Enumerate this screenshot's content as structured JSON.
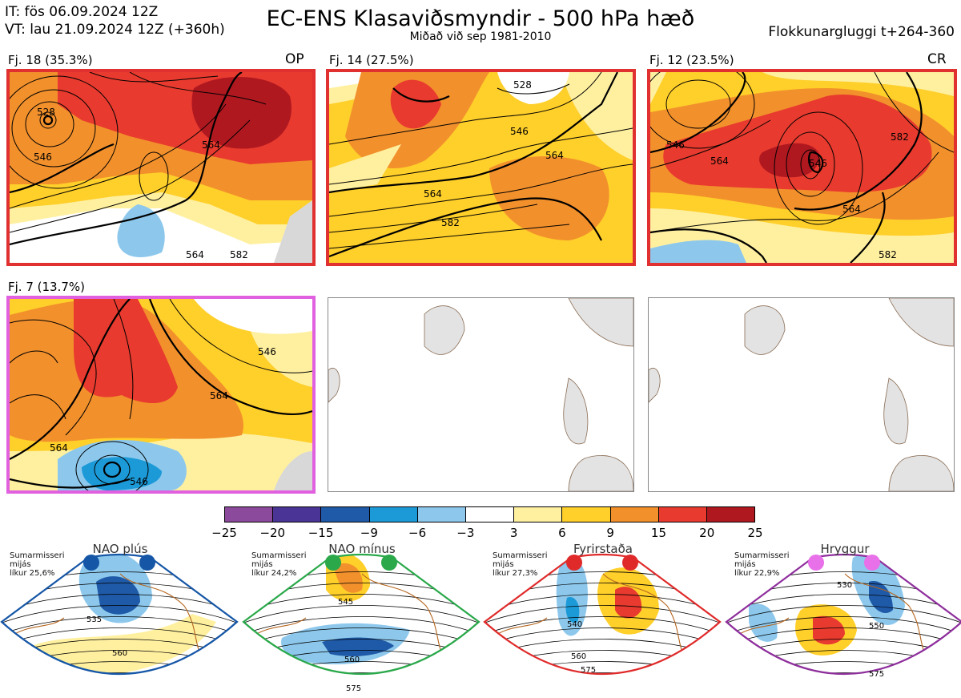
{
  "header": {
    "init_time": "IT: fös 06.09.2024 12Z",
    "valid_time": "VT: lau 21.09.2024 12Z  (+360h)",
    "title": "EC-ENS Klasaviðsmyndir - 500 hPa hæð",
    "subtitle": "Miðað við sep 1981-2010",
    "window": "Flokkunargluggi t+264-360"
  },
  "panels": [
    {
      "label": "Fj. 18 (35.3%)",
      "tag": "OP",
      "border": "#e03030",
      "contours": [
        "528",
        "546",
        "564",
        "564",
        "582"
      ]
    },
    {
      "label": "Fj. 14 (27.5%)",
      "tag": "",
      "border": "#e03030",
      "contours": [
        "528",
        "546",
        "564",
        "564",
        "582"
      ]
    },
    {
      "label": "Fj. 12 (23.5%)",
      "tag": "CR",
      "border": "#e03030",
      "contours": [
        "546",
        "564",
        "546",
        "582",
        "564",
        "582"
      ]
    },
    {
      "label": "Fj. 7 (13.7%)",
      "tag": "",
      "border": "#e060e0",
      "contours": [
        "546",
        "564",
        "564",
        "546"
      ]
    }
  ],
  "colorbar": {
    "ticks": [
      "−25",
      "−20",
      "−15",
      "−9",
      "−6",
      "−3",
      "3",
      "6",
      "9",
      "15",
      "20",
      "25"
    ],
    "colors": [
      "#8c4a9c",
      "#4a3596",
      "#1f5aa8",
      "#1c9ad8",
      "#8dc8ec",
      "#ffffff",
      "#fff0a0",
      "#ffcf2a",
      "#f2902c",
      "#e83a2e",
      "#b01820"
    ]
  },
  "regimes": [
    {
      "name": "NAO plús",
      "season": "Sumarmisseri",
      "mean": "mijás",
      "prob": "líkur 25,6%",
      "color": "#1556a6",
      "contours": [
        "535",
        "560"
      ]
    },
    {
      "name": "NAO mínus",
      "season": "Sumarmisseri",
      "mean": "mijás",
      "prob": "líkur 24,2%",
      "color": "#2aa84a",
      "contours": [
        "545",
        "560",
        "575"
      ]
    },
    {
      "name": "Fyrirstaða",
      "season": "Sumarmisseri",
      "mean": "mijás",
      "prob": "líkur 27,3%",
      "color": "#e02a2a",
      "contours": [
        "540",
        "560",
        "575"
      ]
    },
    {
      "name": "Hryggur",
      "season": "Sumarmisseri",
      "mean": "mijás",
      "prob": "líkur 22,9%",
      "color": "#8e2e9c",
      "contours": [
        "530",
        "550",
        "575"
      ]
    }
  ]
}
